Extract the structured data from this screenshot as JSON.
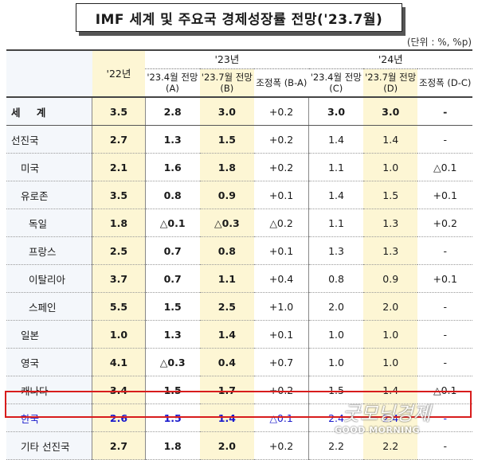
{
  "title": "IMF 세계 및 주요국 경제성장률 전망('23.7월)",
  "unit": "(단위 : %, %p)",
  "headers": {
    "y22": "'22년",
    "y23": "'23년",
    "y24": "'24년",
    "cols": [
      "'23.4월 전망 (A)",
      "'23.7월 전망 (B)",
      "조정폭 (B-A)",
      "'23.4월 전망 (C)",
      "'23.7월 전망 (D)",
      "조정폭 (D-C)"
    ]
  },
  "rows": [
    {
      "name": "세 계",
      "v": [
        "3.5",
        "2.8",
        "3.0",
        "+0.2",
        "3.0",
        "3.0",
        "-"
      ]
    },
    {
      "name": "선진국",
      "v": [
        "2.7",
        "1.3",
        "1.5",
        "+0.2",
        "1.4",
        "1.4",
        "-"
      ]
    },
    {
      "name": "미국",
      "v": [
        "2.1",
        "1.6",
        "1.8",
        "+0.2",
        "1.1",
        "1.0",
        "△0.1"
      ]
    },
    {
      "name": "유로존",
      "v": [
        "3.5",
        "0.8",
        "0.9",
        "+0.1",
        "1.4",
        "1.5",
        "+0.1"
      ]
    },
    {
      "name": "독일",
      "v": [
        "1.8",
        "△0.1",
        "△0.3",
        "△0.2",
        "1.1",
        "1.3",
        "+0.2"
      ]
    },
    {
      "name": "프랑스",
      "v": [
        "2.5",
        "0.7",
        "0.8",
        "+0.1",
        "1.3",
        "1.3",
        "-"
      ]
    },
    {
      "name": "이탈리아",
      "v": [
        "3.7",
        "0.7",
        "1.1",
        "+0.4",
        "0.8",
        "0.9",
        "+0.1"
      ]
    },
    {
      "name": "스페인",
      "v": [
        "5.5",
        "1.5",
        "2.5",
        "+1.0",
        "2.0",
        "2.0",
        "-"
      ]
    },
    {
      "name": "일본",
      "v": [
        "1.0",
        "1.3",
        "1.4",
        "+0.1",
        "1.0",
        "1.0",
        "-"
      ]
    },
    {
      "name": "영국",
      "v": [
        "4.1",
        "△0.3",
        "0.4",
        "+0.7",
        "1.0",
        "1.0",
        "-"
      ]
    },
    {
      "name": "캐나다",
      "v": [
        "3.4",
        "1.5",
        "1.7",
        "+0.2",
        "1.5",
        "1.4",
        "△0.1"
      ]
    },
    {
      "name": "한국",
      "v": [
        "2.6",
        "1.5",
        "1.4",
        "△0.1",
        "2.4",
        "2.4",
        "-"
      ]
    },
    {
      "name": "기타 선진국",
      "v": [
        "2.7",
        "1.8",
        "2.0",
        "+0.2",
        "2.2",
        "2.2",
        "-"
      ]
    }
  ],
  "watermark": {
    "script": "굿모닝경제",
    "line": "GOOD MORNING"
  }
}
